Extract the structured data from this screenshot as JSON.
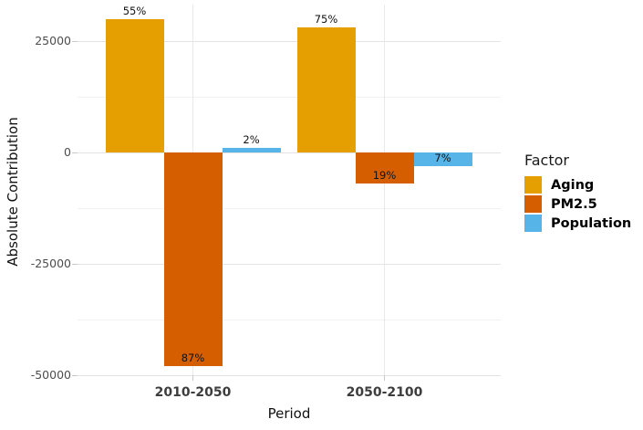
{
  "chart_data": {
    "type": "bar",
    "title": "",
    "xlabel": "Period",
    "ylabel": "Absolute Contribution",
    "categories": [
      "2010-2050",
      "2050-2100"
    ],
    "series": [
      {
        "name": "Aging",
        "color": "#E69F00",
        "values": [
          30000,
          28000
        ],
        "bar_labels": [
          "55%",
          "75%"
        ]
      },
      {
        "name": "PM2.5",
        "color": "#D55E00",
        "values": [
          -48000,
          -7000
        ],
        "bar_labels": [
          "87%",
          "19%"
        ]
      },
      {
        "name": "Population",
        "color": "#56B4E9",
        "values": [
          1000,
          -3000
        ],
        "bar_labels": [
          "2%",
          "7%"
        ]
      }
    ],
    "y_axis": {
      "tick_values": [
        25000,
        0,
        -25000,
        -50000
      ],
      "tick_labels": [
        "25000",
        "0",
        "-25000",
        "-50000"
      ],
      "minor_tick_values": [
        12500,
        -12500,
        -37500
      ],
      "ylim": [
        -51000,
        33000
      ]
    },
    "legend": {
      "title": "Factor",
      "position": "right"
    },
    "grid": "on",
    "colors": {
      "background": "#ffffff",
      "major_grid": "#e3e3e3",
      "minor_grid": "#f1f1f1",
      "vertical_grid": "#e9e9e9",
      "axis_tick": "#c9c9c9"
    }
  }
}
